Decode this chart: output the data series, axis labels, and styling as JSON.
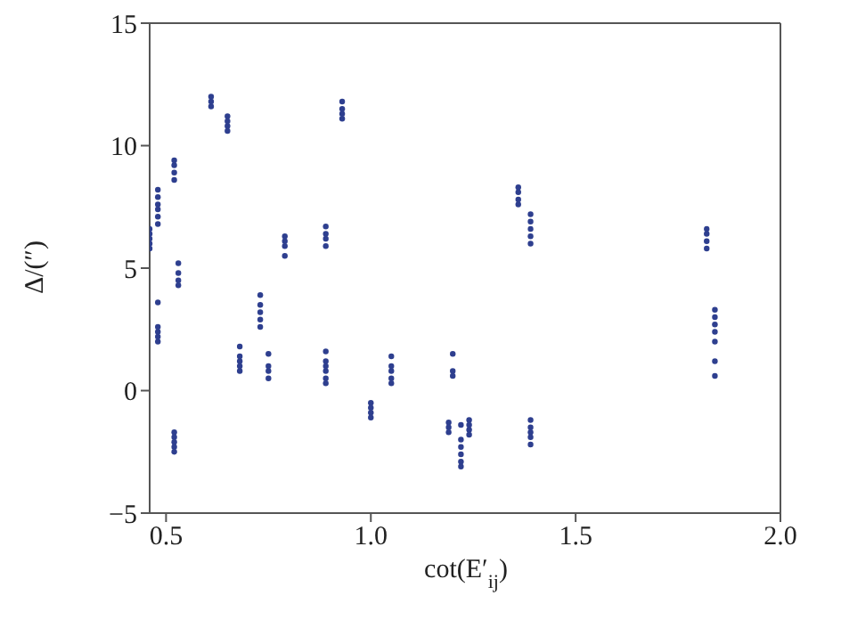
{
  "chart_data": {
    "type": "scatter",
    "xlabel": "cot(E′$_{ij}$)",
    "ylabel": "Δ/(″)",
    "xlim": [
      0.46,
      2.0
    ],
    "ylim": [
      -5,
      15
    ],
    "xticks": [
      0.5,
      {
        "value": 1,
        "label": "1.0"
      },
      1.5,
      {
        "value": 2,
        "label": "2.0"
      }
    ],
    "yticks": [
      {
        "value": -5,
        "label": "−5"
      },
      0,
      5,
      10,
      15
    ],
    "grid": false,
    "legend": false,
    "marker": "circle",
    "series": [
      {
        "color": "#2e3f8f",
        "x": [
          0.46,
          0.46,
          0.46,
          0.46,
          0.46,
          0.48,
          0.48,
          0.48,
          0.48,
          0.48,
          0.48,
          0.48,
          0.48,
          0.48,
          0.48,
          0.48,
          0.52,
          0.52,
          0.52,
          0.52,
          0.52,
          0.52,
          0.52,
          0.52,
          0.52,
          0.53,
          0.53,
          0.53,
          0.53,
          0.61,
          0.61,
          0.61,
          0.65,
          0.65,
          0.65,
          0.65,
          0.68,
          0.68,
          0.68,
          0.68,
          0.68,
          0.73,
          0.73,
          0.73,
          0.73,
          0.73,
          0.75,
          0.75,
          0.75,
          0.75,
          0.79,
          0.79,
          0.79,
          0.79,
          0.89,
          0.89,
          0.89,
          0.89,
          0.89,
          0.89,
          0.89,
          0.89,
          0.89,
          0.89,
          0.93,
          0.93,
          0.93,
          0.93,
          1.0,
          1.0,
          1.0,
          1.0,
          1.05,
          1.05,
          1.05,
          1.05,
          1.05,
          1.19,
          1.19,
          1.19,
          1.2,
          1.2,
          1.2,
          1.22,
          1.22,
          1.22,
          1.22,
          1.22,
          1.22,
          1.24,
          1.24,
          1.24,
          1.24,
          1.36,
          1.36,
          1.36,
          1.36,
          1.39,
          1.39,
          1.39,
          1.39,
          1.39,
          1.39,
          1.39,
          1.39,
          1.39,
          1.39,
          1.82,
          1.82,
          1.82,
          1.82,
          1.84,
          1.84,
          1.84,
          1.84,
          1.84,
          1.84,
          1.84
        ],
        "values": [
          5.8,
          6.0,
          6.2,
          6.4,
          6.6,
          3.6,
          2.0,
          2.2,
          2.4,
          2.6,
          6.8,
          7.1,
          7.4,
          7.6,
          7.9,
          8.2,
          8.6,
          8.9,
          9.2,
          9.4,
          -1.7,
          -1.9,
          -2.1,
          -2.3,
          -2.5,
          4.3,
          4.5,
          4.8,
          5.2,
          11.6,
          11.8,
          12.0,
          10.6,
          10.8,
          11.0,
          11.2,
          0.8,
          1.0,
          1.2,
          1.4,
          1.8,
          2.6,
          2.9,
          3.2,
          3.5,
          3.9,
          0.5,
          0.8,
          1.0,
          1.5,
          5.5,
          5.9,
          6.1,
          6.3,
          5.9,
          6.2,
          6.4,
          6.7,
          0.3,
          0.5,
          0.8,
          1.0,
          1.2,
          1.6,
          11.1,
          11.3,
          11.5,
          11.8,
          -0.5,
          -0.7,
          -0.9,
          -1.1,
          0.3,
          0.5,
          0.8,
          1.0,
          1.4,
          -1.3,
          -1.5,
          -1.7,
          0.6,
          0.8,
          1.5,
          -1.4,
          -2.0,
          -2.3,
          -2.6,
          -2.9,
          -3.1,
          -1.2,
          -1.4,
          -1.6,
          -1.8,
          7.6,
          7.8,
          8.1,
          8.3,
          6.0,
          6.3,
          6.6,
          6.9,
          7.2,
          -1.2,
          -1.5,
          -1.7,
          -1.9,
          -2.2,
          5.8,
          6.1,
          6.4,
          6.6,
          0.6,
          1.2,
          2.0,
          2.4,
          2.7,
          3.0,
          3.3
        ]
      }
    ]
  }
}
